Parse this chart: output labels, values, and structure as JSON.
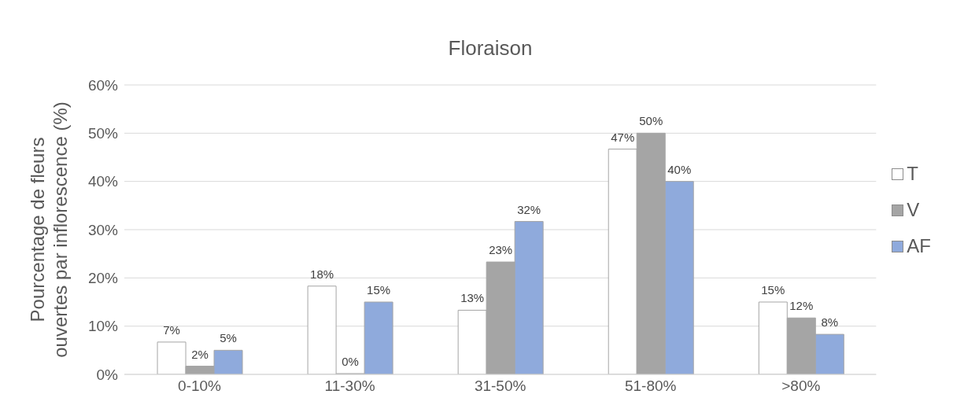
{
  "chart_data": {
    "type": "bar",
    "title": "Floraison",
    "ylabel": "Pourcentage de fleurs ouvertes par inflorescence (%)",
    "categories": [
      "0-10%",
      "11-30%",
      "31-50%",
      "51-80%",
      ">80%"
    ],
    "series": [
      {
        "name": "T",
        "color": "#ffffff",
        "values": [
          6.7,
          18.3,
          13.3,
          46.7,
          15
        ],
        "value_labels": [
          "7%",
          "18%",
          "13%",
          "47%",
          "15%"
        ]
      },
      {
        "name": "V",
        "color": "#a5a5a5",
        "values": [
          1.7,
          0,
          23.3,
          50,
          11.7
        ],
        "value_labels": [
          "2%",
          "0%",
          "23%",
          "50%",
          "12%"
        ]
      },
      {
        "name": "AF",
        "color": "#8faadc",
        "values": [
          5,
          15,
          31.7,
          40,
          8.3
        ],
        "value_labels": [
          "5%",
          "15%",
          "32%",
          "40%",
          "8%"
        ]
      }
    ],
    "ylim": [
      0,
      60
    ],
    "yticks": [
      {
        "value": 0,
        "label": "0%"
      },
      {
        "value": 10,
        "label": "10%"
      },
      {
        "value": 20,
        "label": "20%"
      },
      {
        "value": 30,
        "label": "30%"
      },
      {
        "value": 40,
        "label": "40%"
      },
      {
        "value": 50,
        "label": "50%"
      },
      {
        "value": 60,
        "label": "60%"
      }
    ],
    "grid": "y",
    "legend": "right"
  }
}
